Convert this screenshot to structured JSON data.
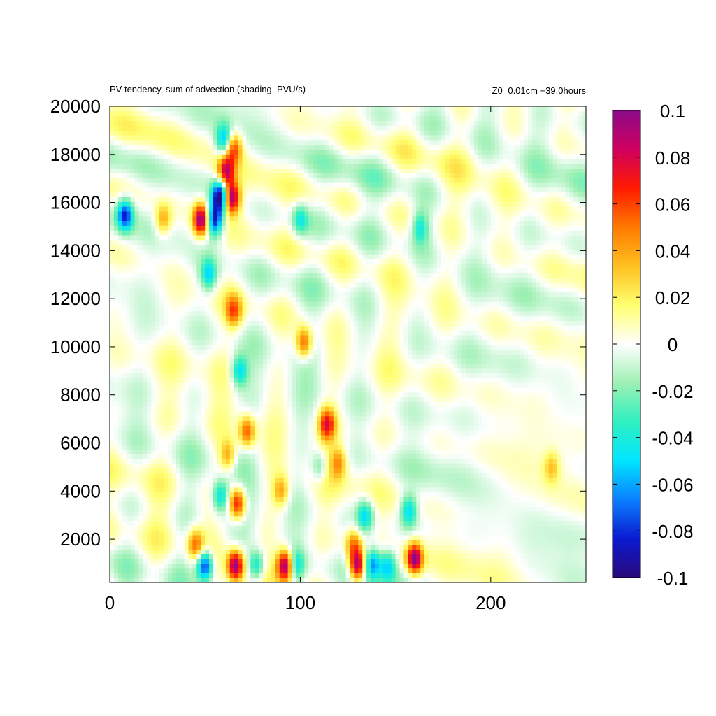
{
  "chart_data": {
    "type": "heatmap",
    "title": "PV tendency, sum of advection (shading, PVU/s)",
    "subtitle": "Z0=0.01cm   +39.0hours",
    "xlabel": "",
    "ylabel": "",
    "xlim": [
      0,
      250
    ],
    "ylim": [
      200,
      20000
    ],
    "x_ticks": [
      "0",
      "100",
      "200"
    ],
    "y_ticks": [
      "2000",
      "4000",
      "6000",
      "8000",
      "10000",
      "12000",
      "14000",
      "16000",
      "18000",
      "20000"
    ],
    "colorbar": {
      "range": [
        -0.1,
        0.1
      ],
      "labels": [
        "0.1",
        "0.08",
        "0.06",
        "0.04",
        "0.02",
        "0",
        "-0.02",
        "-0.04",
        "-0.06",
        "-0.08",
        "-0.1"
      ],
      "colors": [
        "#2a0a7a",
        "#0a1ad0",
        "#0a7fff",
        "#00e5ff",
        "#2ff0c0",
        "#9ef0b4",
        "#ffffff",
        "#ffff70",
        "#ffc020",
        "#ff7a00",
        "#ff1a00",
        "#d0005e",
        "#8a0a8a"
      ]
    },
    "features": [
      {
        "x": 8,
        "y": 15500,
        "value": -0.08
      },
      {
        "x": 28,
        "y": 15300,
        "value": 0.04
      },
      {
        "x": 48,
        "y": 15300,
        "value": 0.1
      },
      {
        "x": 55,
        "y": 15300,
        "value": -0.09
      },
      {
        "x": 58,
        "y": 16300,
        "value": -0.1
      },
      {
        "x": 61,
        "y": 17300,
        "value": 0.08
      },
      {
        "x": 60,
        "y": 18600,
        "value": -0.06
      },
      {
        "x": 64,
        "y": 16200,
        "value": 0.1
      },
      {
        "x": 65,
        "y": 18300,
        "value": 0.06
      },
      {
        "x": 52,
        "y": 13000,
        "value": -0.05
      },
      {
        "x": 65,
        "y": 11500,
        "value": 0.05
      },
      {
        "x": 68,
        "y": 9000,
        "value": -0.05
      },
      {
        "x": 102,
        "y": 10200,
        "value": 0.06
      },
      {
        "x": 100,
        "y": 15300,
        "value": -0.04
      },
      {
        "x": 72,
        "y": 6500,
        "value": 0.06
      },
      {
        "x": 67,
        "y": 3500,
        "value": 0.08
      },
      {
        "x": 62,
        "y": 5500,
        "value": 0.04
      },
      {
        "x": 58,
        "y": 3800,
        "value": -0.05
      },
      {
        "x": 90,
        "y": 4000,
        "value": 0.04
      },
      {
        "x": 114,
        "y": 6800,
        "value": 0.07
      },
      {
        "x": 120,
        "y": 5200,
        "value": 0.04
      },
      {
        "x": 110,
        "y": 5000,
        "value": -0.03
      },
      {
        "x": 134,
        "y": 3000,
        "value": -0.05
      },
      {
        "x": 157,
        "y": 3200,
        "value": -0.05
      },
      {
        "x": 163,
        "y": 15000,
        "value": -0.04
      },
      {
        "x": 50,
        "y": 900,
        "value": -0.09
      },
      {
        "x": 45,
        "y": 1800,
        "value": 0.05
      },
      {
        "x": 66,
        "y": 900,
        "value": 0.1
      },
      {
        "x": 77,
        "y": 900,
        "value": -0.05
      },
      {
        "x": 92,
        "y": 900,
        "value": 0.1
      },
      {
        "x": 98,
        "y": 900,
        "value": -0.04
      },
      {
        "x": 130,
        "y": 900,
        "value": 0.1
      },
      {
        "x": 128,
        "y": 1800,
        "value": 0.05
      },
      {
        "x": 138,
        "y": 1000,
        "value": -0.06
      },
      {
        "x": 146,
        "y": 900,
        "value": -0.05
      },
      {
        "x": 160,
        "y": 1200,
        "value": 0.1
      },
      {
        "x": 232,
        "y": 5000,
        "value": 0.03
      }
    ]
  }
}
